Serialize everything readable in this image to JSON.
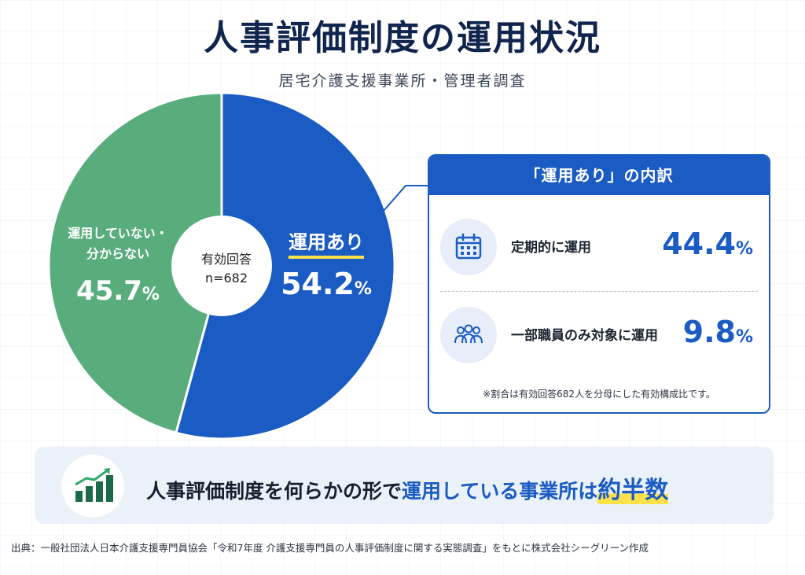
{
  "title": "人事評価制度の運用状況",
  "subtitle": "居宅介護支援事業所・管理者調査",
  "chart_data": {
    "type": "pie",
    "slices": [
      {
        "label": "運用あり",
        "value": 54.2,
        "color": "#1a5bc4"
      },
      {
        "label": "運用していない・分からない",
        "value": 45.7,
        "color": "#59ad7d"
      }
    ],
    "center_label": [
      "有効回答",
      "n=682"
    ],
    "unit": "%",
    "legend": "none"
  },
  "labels": {
    "green_line1": "運用していない・",
    "green_line2": "分からない",
    "green_pct": "45.7",
    "blue_label": "運用あり",
    "blue_pct": "54.2",
    "center_line1": "有効回答",
    "center_line2": "n=682",
    "pct_sign": "%"
  },
  "breakdown": {
    "heading": "「運用あり」の内訳",
    "items": [
      {
        "label": "定期的に運用",
        "value": "44.4",
        "icon": "calendar-icon"
      },
      {
        "label": "一部職員のみ対象に運用",
        "value": "9.8",
        "icon": "people-icon"
      }
    ],
    "note": "※割合は有効回答682人を分母にした有効構成比です。"
  },
  "banner": {
    "text_part1": "人事評価制度を何らかの形で",
    "text_part2": "運用している事業所は",
    "text_part3": "約半数",
    "icon": "growth-chart-icon"
  },
  "source": "出典：一般社団法人日本介護支援専門員協会「令和7年度 介護支援専門員の人事評価制度に関する実態調査」をもとに株式会社シーグリーン作成",
  "colors": {
    "blue": "#1a5bc4",
    "green": "#59ad7d",
    "navy": "#10254d",
    "yellow": "#ffe14a"
  }
}
